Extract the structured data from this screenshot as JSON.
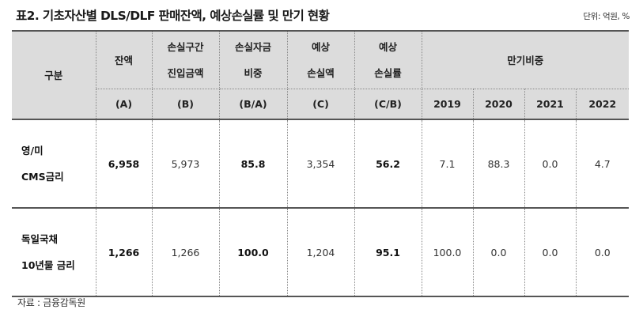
{
  "title": "표2. 기초자산별 DLS/DLF 판매잔액, 예상손실률 및 만기 현황",
  "unit": "단위: 억원, %",
  "header": {
    "gubun": "구분",
    "columns": [
      {
        "line1": "잔액",
        "line2": "",
        "sub": "(A)"
      },
      {
        "line1": "손실구간",
        "line2": "진입금액",
        "sub": "(B)"
      },
      {
        "line1": "손실자금",
        "line2": "비중",
        "sub": "(B/A)"
      },
      {
        "line1": "예상",
        "line2": "손실액",
        "sub": "(C)"
      },
      {
        "line1": "예상",
        "line2": "손실률",
        "sub": "(C/B)"
      }
    ],
    "maturity_group": "만기비중",
    "years": [
      "2019",
      "2020",
      "2021",
      "2022"
    ]
  },
  "rows": [
    {
      "label_line1": "영/미",
      "label_line2": "CMS금리",
      "balance": "6,958",
      "loss_zone_amount": "5,973",
      "loss_ratio": "85.8",
      "expected_loss": "3,354",
      "expected_loss_rate": "56.2",
      "maturity": [
        "7.1",
        "88.3",
        "0.0",
        "4.7"
      ]
    },
    {
      "label_line1": "독일국채",
      "label_line2": "10년물 금리",
      "balance": "1,266",
      "loss_zone_amount": "1,266",
      "loss_ratio": "100.0",
      "expected_loss": "1,204",
      "expected_loss_rate": "95.1",
      "maturity": [
        "100.0",
        "0.0",
        "0.0",
        "0.0"
      ]
    }
  ],
  "source": "자료 : 금융감독원",
  "colors": {
    "header_bg": "#dcdcdc",
    "rule": "#555555",
    "grid": "#888888"
  }
}
